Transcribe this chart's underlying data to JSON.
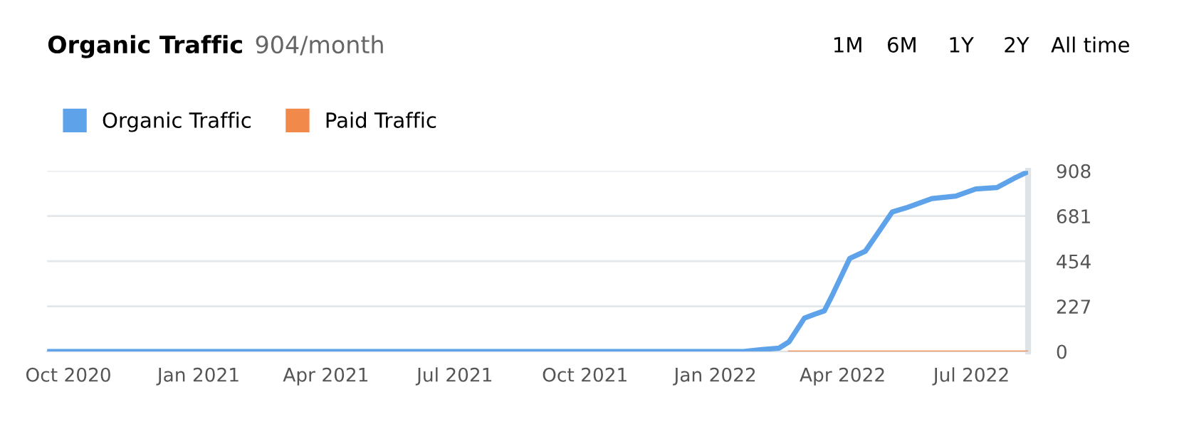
{
  "chart_data": {
    "type": "line",
    "title": "Organic Traffic",
    "subtitle": "904/month",
    "annotations": [
      "1M",
      "6M",
      "1Y",
      "2Y",
      "All time"
    ],
    "series": [
      {
        "name": "Organic Traffic",
        "color": "#5ea3ea",
        "x": [
          "2020-09-16",
          "2022-01-14",
          "2022-01-21",
          "2022-02-03",
          "2022-02-15",
          "2022-02-22",
          "2022-03-05",
          "2022-03-12",
          "2022-03-19",
          "2022-03-25",
          "2022-04-06",
          "2022-04-17",
          "2022-04-24",
          "2022-05-06",
          "2022-05-17",
          "2022-06-03",
          "2022-06-20",
          "2022-07-04",
          "2022-07-19",
          "2022-07-31",
          "2022-08-10"
        ],
        "values": [
          0,
          0,
          0,
          10,
          17,
          48,
          168,
          187,
          204,
          288,
          468,
          504,
          576,
          701,
          725,
          769,
          781,
          817,
          824,
          870,
          904
        ]
      },
      {
        "name": "Paid Traffic",
        "color": "#f0894a",
        "x": [
          "2022-02-22",
          "2022-08-10"
        ],
        "values": [
          0,
          0
        ]
      }
    ],
    "xlim": [
      "2020-09-16",
      "2022-08-10"
    ],
    "xticks": [
      {
        "value": "2020-10-01",
        "label": "Oct 2020"
      },
      {
        "value": "2021-01-01",
        "label": "Jan 2021"
      },
      {
        "value": "2021-04-01",
        "label": "Apr 2021"
      },
      {
        "value": "2021-07-01",
        "label": "Jul 2021"
      },
      {
        "value": "2021-10-01",
        "label": "Oct 2021"
      },
      {
        "value": "2022-01-01",
        "label": "Jan 2022"
      },
      {
        "value": "2022-04-01",
        "label": "Apr 2022"
      },
      {
        "value": "2022-07-01",
        "label": "Jul 2022"
      }
    ],
    "ylim": [
      0,
      908
    ],
    "yticks": [
      0,
      227,
      454,
      681,
      908
    ],
    "grid": "y",
    "legend": "top left",
    "marker": "none",
    "line_style": "solid"
  }
}
